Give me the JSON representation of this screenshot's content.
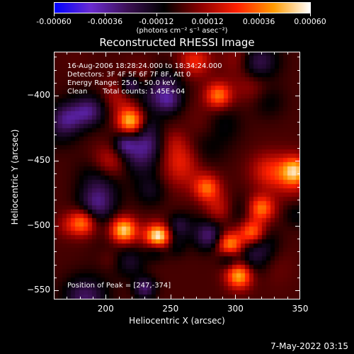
{
  "colorbar": {
    "tick_labels": [
      "-0.00060",
      "-0.00036",
      "-0.00012",
      "0.00012",
      "0.00036",
      "0.00060"
    ],
    "units": "(photons cm⁻² s⁻¹ asec⁻²)",
    "range": [
      -0.0006,
      0.0006
    ],
    "colors": [
      "#0000ff",
      "#6a2bd0",
      "#3c1055",
      "#000000",
      "#8b0000",
      "#ff2000",
      "#ff9a00",
      "#ffffff"
    ]
  },
  "annotations": {
    "line1": "16-Aug-2006 18:28:24.000 to 18:34:24.000",
    "line2": "Detectors: 3F 4F 5F 6F 7F 8F, Att 0",
    "line3": "Energy Range: 25.0 - 50.0 keV",
    "line4_a": "Clean",
    "line4_b": "Total counts: 1.45E+04",
    "peak": "Position of Peak = [247,-374]"
  },
  "datestamp": "7-May-2022 03:15",
  "chart_data": {
    "type": "heatmap",
    "title": "Reconstructed RHESSI Image",
    "xlabel": "Heliocentric X (arcsec)",
    "ylabel": "Heliocentric Y (arcsec)",
    "xlim": [
      160,
      350
    ],
    "ylim": [
      -557,
      -366
    ],
    "xticks": [
      200,
      250,
      300,
      350
    ],
    "yticks": [
      -400,
      -450,
      -500,
      -550
    ],
    "xtick_labels": [
      "200",
      "250",
      "300",
      "350"
    ],
    "ytick_labels": [
      "−400",
      "−450",
      "−500",
      "−550"
    ],
    "peak_position": [
      247,
      -374
    ],
    "value_range": [
      -0.0006,
      0.0006
    ],
    "colormap": "blue-purple-black-red-yellow-white",
    "bright_sources": [
      {
        "x": 219,
        "y": -420,
        "value": 0.0005
      },
      {
        "x": 214,
        "y": -504,
        "value": 0.00055
      },
      {
        "x": 240,
        "y": -511,
        "value": 0.00045
      },
      {
        "x": 296,
        "y": -515,
        "value": 0.00045
      },
      {
        "x": 303,
        "y": -539,
        "value": 0.0005
      },
      {
        "x": 313,
        "y": -506,
        "value": 0.00045
      },
      {
        "x": 320,
        "y": -487,
        "value": 0.00038
      },
      {
        "x": 182,
        "y": -498,
        "value": 0.00038
      },
      {
        "x": 287,
        "y": -400,
        "value": 0.00038
      },
      {
        "x": 278,
        "y": -471,
        "value": 0.00035
      },
      {
        "x": 346,
        "y": -458,
        "value": 0.00035
      }
    ]
  }
}
